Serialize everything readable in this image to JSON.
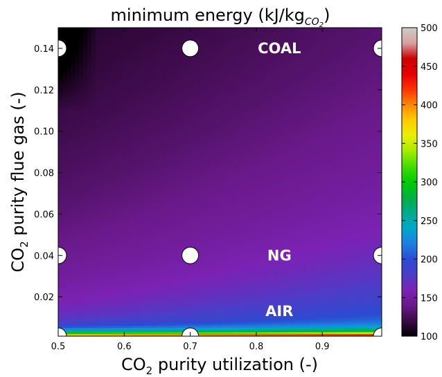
{
  "chart_data": {
    "type": "heatmap",
    "title": {
      "prefix": "minimum energy (kJ/kg",
      "subscript": "CO",
      "sub_subscript": "2",
      "suffix": ")"
    },
    "xlabel": {
      "prefix": "CO",
      "subscript": "2",
      "suffix": " purity utilization (-)"
    },
    "ylabel": {
      "prefix": "CO",
      "subscript": "2",
      "suffix": " purity flue gas (-)"
    },
    "xlim": [
      0.5,
      0.99
    ],
    "ylim": [
      0.001,
      0.15
    ],
    "x_ticks": [
      {
        "value": 0.5,
        "label": "0.5"
      },
      {
        "value": 0.6,
        "label": "0.6"
      },
      {
        "value": 0.7,
        "label": "0.7"
      },
      {
        "value": 0.8,
        "label": "0.8"
      },
      {
        "value": 0.9,
        "label": "0.9"
      }
    ],
    "y_ticks": [
      {
        "value": 0.02,
        "label": "0.02"
      },
      {
        "value": 0.04,
        "label": "0.04"
      },
      {
        "value": 0.06,
        "label": "0.06"
      },
      {
        "value": 0.08,
        "label": "0.08"
      },
      {
        "value": 0.1,
        "label": "0.10"
      },
      {
        "value": 0.12,
        "label": "0.12"
      },
      {
        "value": 0.14,
        "label": "0.14"
      }
    ],
    "colorbar": {
      "range": [
        100,
        500
      ],
      "ticks": [
        {
          "value": 100,
          "label": "100"
        },
        {
          "value": 150,
          "label": "150"
        },
        {
          "value": 200,
          "label": "200"
        },
        {
          "value": 250,
          "label": "250"
        },
        {
          "value": 300,
          "label": "300"
        },
        {
          "value": 350,
          "label": "350"
        },
        {
          "value": 400,
          "label": "400"
        },
        {
          "value": 450,
          "label": "450"
        },
        {
          "value": 500,
          "label": "500"
        }
      ],
      "colormap": "nipy_spectral"
    },
    "sample_points": [
      {
        "x": 0.5,
        "y": 0.14
      },
      {
        "x": 0.7,
        "y": 0.14
      },
      {
        "x": 0.99,
        "y": 0.14
      },
      {
        "x": 0.5,
        "y": 0.04
      },
      {
        "x": 0.7,
        "y": 0.04
      },
      {
        "x": 0.99,
        "y": 0.04
      },
      {
        "x": 0.5,
        "y": 0.001
      },
      {
        "x": 0.7,
        "y": 0.001
      },
      {
        "x": 0.99,
        "y": 0.001
      }
    ],
    "annotations": [
      {
        "text": "COAL",
        "x": 0.835,
        "y": 0.14
      },
      {
        "text": "NG",
        "x": 0.835,
        "y": 0.04
      },
      {
        "text": "AIR",
        "x": 0.835,
        "y": 0.013
      }
    ],
    "grid": false
  }
}
